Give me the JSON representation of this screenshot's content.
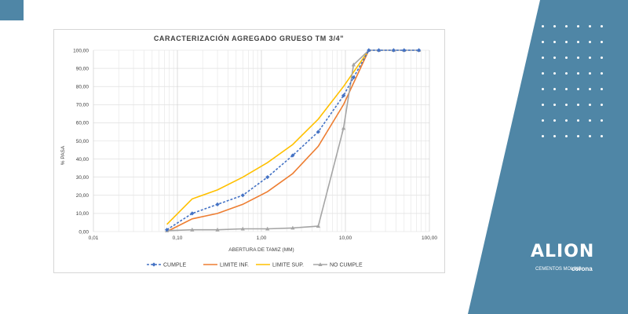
{
  "colors": {
    "panel": "#4f86a6",
    "cumple": "#4472c4",
    "limite_inf": "#ed7d31",
    "limite_sup": "#ffc000",
    "no_cumple": "#a5a5a5"
  },
  "brand": {
    "logo_name": "ALION",
    "sub_left": "CEMENTOS MOLINS",
    "sub_right": "corona",
    "icon": "alion-logo"
  },
  "chart_data": {
    "type": "line",
    "title": "CARACTERIZACIÓN AGREGADO GRUESO TM 3/4\"",
    "xlabel": "ABERTURA DE TAMIZ (MM)",
    "ylabel": "% PASA",
    "x_scale": "log",
    "xlim": [
      0.01,
      100
    ],
    "ylim": [
      0,
      100
    ],
    "x_ticks": [
      "0,01",
      "0,10",
      "1,00",
      "10,00",
      "100,00"
    ],
    "y_ticks": [
      "0,00",
      "10,00",
      "20,00",
      "30,00",
      "40,00",
      "50,00",
      "60,00",
      "70,00",
      "80,00",
      "90,00",
      "100,00"
    ],
    "grid": true,
    "legend_position": "bottom",
    "series": [
      {
        "name": "CUMPLE",
        "color": "#4472c4",
        "dash": true,
        "marker": "diamond",
        "x": [
          0.075,
          0.15,
          0.3,
          0.6,
          1.18,
          2.36,
          4.75,
          9.5,
          12.5,
          19,
          25,
          37.5,
          50,
          75
        ],
        "y": [
          1,
          10,
          15,
          20,
          30,
          42,
          55,
          75,
          85,
          100,
          100,
          100,
          100,
          100
        ]
      },
      {
        "name": "LIMITE INF.",
        "color": "#ed7d31",
        "dash": false,
        "marker": "none",
        "x": [
          0.075,
          0.15,
          0.3,
          0.6,
          1.18,
          2.36,
          4.75,
          9.5,
          19
        ],
        "y": [
          0,
          7,
          10,
          15,
          22,
          32,
          47,
          70,
          100
        ]
      },
      {
        "name": "LIMITE SUP.",
        "color": "#ffc000",
        "dash": false,
        "marker": "none",
        "x": [
          0.075,
          0.15,
          0.3,
          0.6,
          1.18,
          2.36,
          4.75,
          9.5,
          19
        ],
        "y": [
          4,
          18,
          23,
          30,
          38,
          48,
          62,
          80,
          100
        ]
      },
      {
        "name": "NO CUMPLE",
        "color": "#a5a5a5",
        "dash": false,
        "marker": "triangle",
        "x": [
          0.075,
          0.15,
          0.3,
          0.6,
          1.18,
          2.36,
          4.75,
          9.5,
          12.5,
          19,
          25,
          37.5,
          50,
          75
        ],
        "y": [
          0.5,
          1,
          1,
          1.5,
          1.5,
          2,
          3,
          57,
          92,
          100,
          100,
          100,
          100,
          100
        ]
      }
    ]
  }
}
